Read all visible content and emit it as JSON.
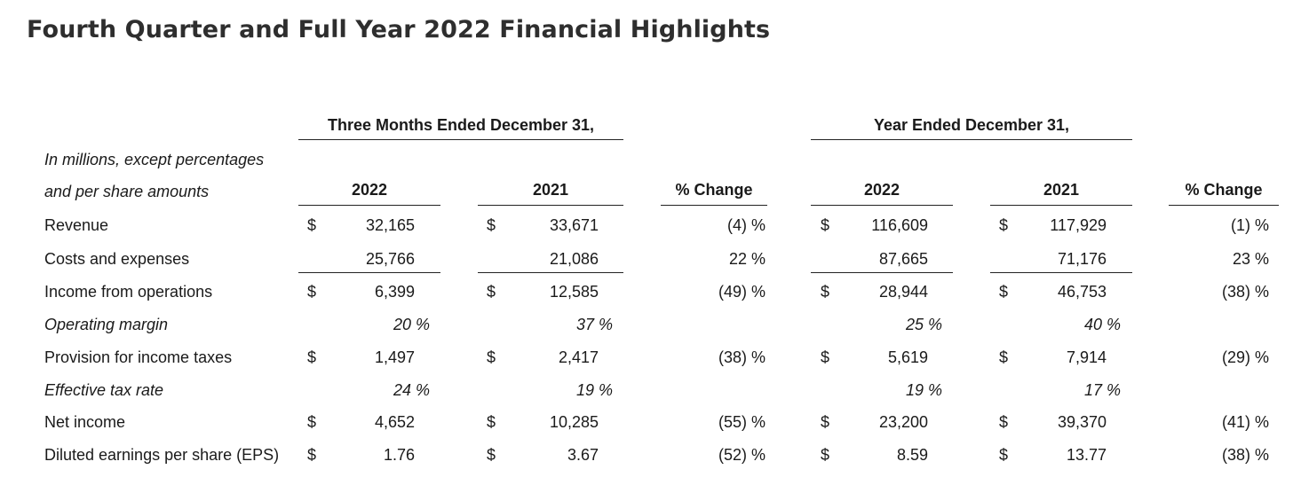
{
  "title": "Fourth Quarter and Full Year 2022 Financial Highlights",
  "groups": {
    "three_months": "Three Months Ended December 31,",
    "year": "Year Ended December 31,"
  },
  "intro_lines": [
    "In millions, except percentages",
    "and per share amounts"
  ],
  "columns": [
    "2022",
    "2021",
    "% Change",
    "2022",
    "2021",
    "% Change"
  ],
  "rows": [
    {
      "label": "Revenue",
      "italic": false,
      "dollar": true,
      "cells": [
        "32,165",
        "33,671",
        "(4) %",
        "116,609",
        "117,929",
        "(1) %"
      ]
    },
    {
      "label": "Costs and expenses",
      "italic": false,
      "dollar": false,
      "cells": [
        "25,766",
        "21,086",
        "22 %",
        "87,665",
        "71,176",
        "23 %"
      ]
    },
    {
      "label": "Income from operations",
      "italic": false,
      "dollar": true,
      "cells": [
        "6,399",
        "12,585",
        "(49) %",
        "28,944",
        "46,753",
        "(38) %"
      ]
    },
    {
      "label": "Operating margin",
      "italic": true,
      "dollar": false,
      "cells": [
        "20 %",
        "37 %",
        "",
        "25 %",
        "40 %",
        ""
      ]
    },
    {
      "label": "Provision for income taxes",
      "italic": false,
      "dollar": true,
      "cells": [
        "1,497",
        "2,417",
        "(38) %",
        "5,619",
        "7,914",
        "(29) %"
      ]
    },
    {
      "label": "Effective tax rate",
      "italic": true,
      "dollar": false,
      "cells": [
        "24 %",
        "19 %",
        "",
        "19 %",
        "17 %",
        ""
      ]
    },
    {
      "label": "Net income",
      "italic": false,
      "dollar": true,
      "cells": [
        "4,652",
        "10,285",
        "(55) %",
        "23,200",
        "39,370",
        "(41) %"
      ]
    },
    {
      "label": "Diluted earnings per share (EPS)",
      "italic": false,
      "dollar": true,
      "cells": [
        "1.76",
        "3.67",
        "(52) %",
        "8.59",
        "13.77",
        "(38) %"
      ]
    }
  ],
  "currency_symbol": "$"
}
